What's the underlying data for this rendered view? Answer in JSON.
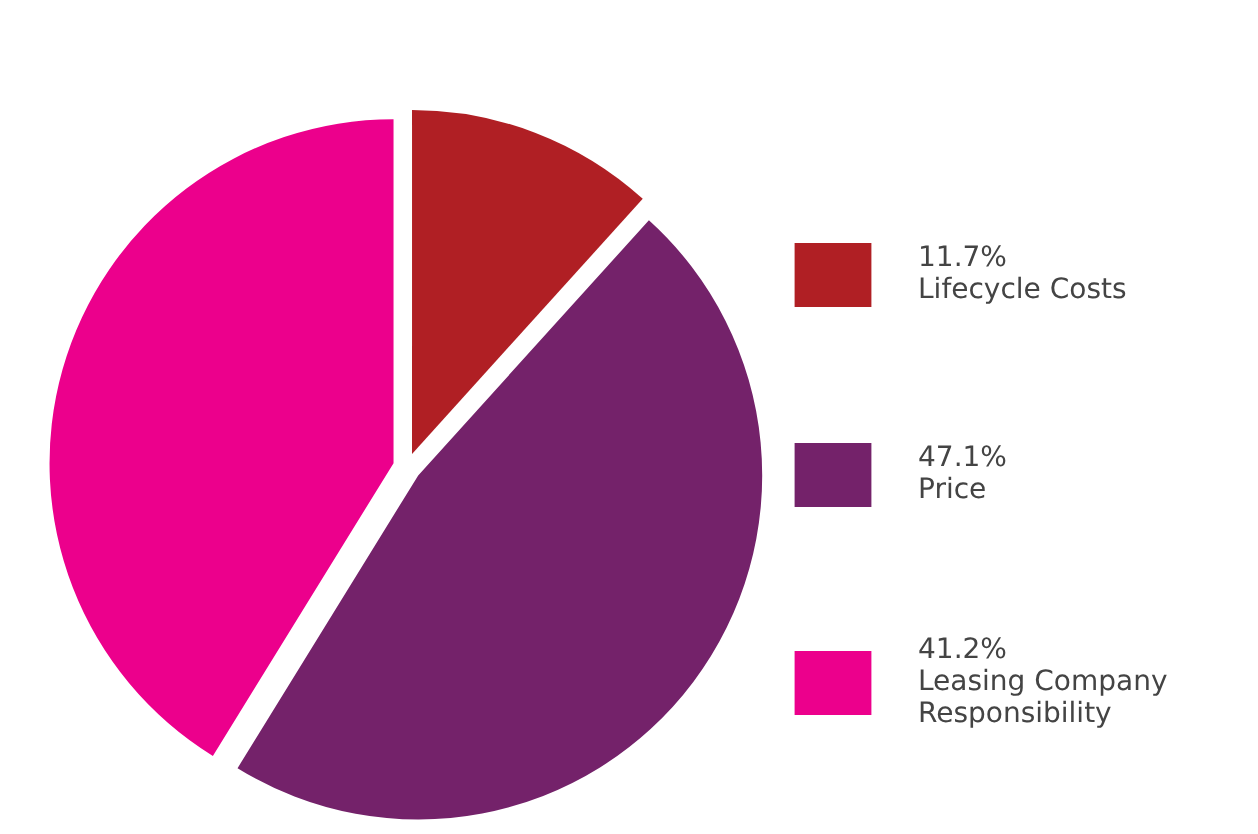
{
  "chart_data": {
    "type": "pie",
    "categories": [
      "Lifecycle Costs",
      "Price",
      "Leasing Company Responsibility"
    ],
    "values": [
      11.7,
      47.1,
      41.2
    ],
    "value_labels": [
      "11.7%",
      "47.1%",
      "41.2%"
    ],
    "colors": [
      "#b01f24",
      "#74226a",
      "#ec008c"
    ],
    "legend": "right"
  }
}
